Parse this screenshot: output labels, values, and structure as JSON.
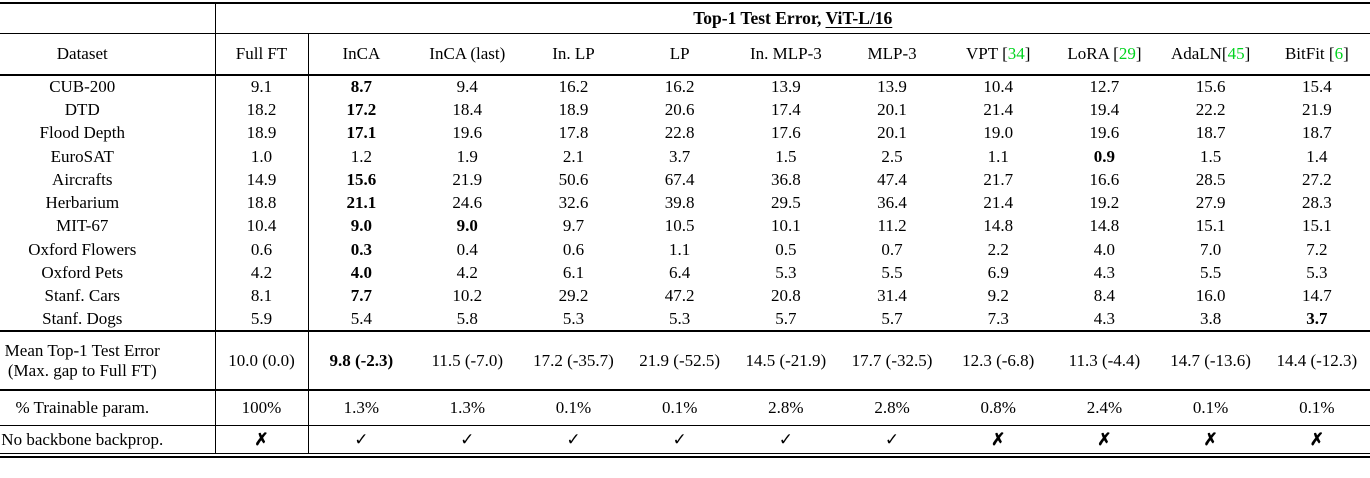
{
  "title": {
    "prefix": "Top-1 Test Error, ",
    "model": "ViT-L/16"
  },
  "colors": {
    "citation_green": "#00d41e",
    "text": "#000000",
    "background": "#ffffff"
  },
  "icons": {
    "check": "✓",
    "cross": "✗"
  },
  "columns": [
    {
      "label": "Dataset"
    },
    {
      "label": "Full FT"
    },
    {
      "label": "InCA"
    },
    {
      "label": "InCA (last)"
    },
    {
      "label": "In. LP"
    },
    {
      "label": "LP"
    },
    {
      "label": "In. MLP-3"
    },
    {
      "label": "MLP-3"
    },
    {
      "label": "VPT",
      "cite": "34",
      "no_space": false
    },
    {
      "label": "LoRA",
      "cite": "29",
      "no_space": false
    },
    {
      "label": "AdaLN",
      "cite": "45",
      "no_space": true
    },
    {
      "label": "BitFit",
      "cite": "6",
      "no_space": false
    }
  ],
  "rows": [
    {
      "dataset": "CUB-200",
      "values": [
        "9.1",
        "8.7",
        "9.4",
        "16.2",
        "16.2",
        "13.9",
        "13.9",
        "10.4",
        "12.7",
        "15.6",
        "15.4"
      ],
      "bold": [
        1
      ]
    },
    {
      "dataset": "DTD",
      "values": [
        "18.2",
        "17.2",
        "18.4",
        "18.9",
        "20.6",
        "17.4",
        "20.1",
        "21.4",
        "19.4",
        "22.2",
        "21.9"
      ],
      "bold": [
        1
      ]
    },
    {
      "dataset": "Flood Depth",
      "values": [
        "18.9",
        "17.1",
        "19.6",
        "17.8",
        "22.8",
        "17.6",
        "20.1",
        "19.0",
        "19.6",
        "18.7",
        "18.7"
      ],
      "bold": [
        1
      ]
    },
    {
      "dataset": "EuroSAT",
      "values": [
        "1.0",
        "1.2",
        "1.9",
        "2.1",
        "3.7",
        "1.5",
        "2.5",
        "1.1",
        "0.9",
        "1.5",
        "1.4"
      ],
      "bold": [
        8
      ]
    },
    {
      "dataset": "Aircrafts",
      "values": [
        "14.9",
        "15.6",
        "21.9",
        "50.6",
        "67.4",
        "36.8",
        "47.4",
        "21.7",
        "16.6",
        "28.5",
        "27.2"
      ],
      "bold": [
        1
      ]
    },
    {
      "dataset": "Herbarium",
      "values": [
        "18.8",
        "21.1",
        "24.6",
        "32.6",
        "39.8",
        "29.5",
        "36.4",
        "21.4",
        "19.2",
        "27.9",
        "28.3"
      ],
      "bold": [
        1
      ]
    },
    {
      "dataset": "MIT-67",
      "values": [
        "10.4",
        "9.0",
        "9.0",
        "9.7",
        "10.5",
        "10.1",
        "11.2",
        "14.8",
        "14.8",
        "15.1",
        "15.1"
      ],
      "bold": [
        1,
        2
      ]
    },
    {
      "dataset": "Oxford Flowers",
      "values": [
        "0.6",
        "0.3",
        "0.4",
        "0.6",
        "1.1",
        "0.5",
        "0.7",
        "2.2",
        "4.0",
        "7.0",
        "7.2"
      ],
      "bold": [
        1
      ]
    },
    {
      "dataset": "Oxford Pets",
      "values": [
        "4.2",
        "4.0",
        "4.2",
        "6.1",
        "6.4",
        "5.3",
        "5.5",
        "6.9",
        "4.3",
        "5.5",
        "5.3"
      ],
      "bold": [
        1
      ]
    },
    {
      "dataset": "Stanf. Cars",
      "values": [
        "8.1",
        "7.7",
        "10.2",
        "29.2",
        "47.2",
        "20.8",
        "31.4",
        "9.2",
        "8.4",
        "16.0",
        "14.7"
      ],
      "bold": [
        1
      ]
    },
    {
      "dataset": "Stanf. Dogs",
      "values": [
        "5.9",
        "5.4",
        "5.8",
        "5.3",
        "5.3",
        "5.7",
        "5.7",
        "7.3",
        "4.3",
        "3.8",
        "3.7"
      ],
      "bold": [
        10
      ]
    }
  ],
  "mean_row": {
    "label_line1": "Mean Top-1 Test Error",
    "label_line2": "(Max. gap to Full FT)",
    "values": [
      "10.0 (0.0)",
      "9.8 (-2.3)",
      "11.5 (-7.0)",
      "17.2 (-35.7)",
      "21.9 (-52.5)",
      "14.5 (-21.9)",
      "17.7 (-32.5)",
      "12.3 (-6.8)",
      "11.3 (-4.4)",
      "14.7 (-13.6)",
      "14.4 (-12.3)"
    ],
    "bold": [
      1
    ]
  },
  "trainable_row": {
    "label": "% Trainable param.",
    "values": [
      "100%",
      "1.3%",
      "1.3%",
      "0.1%",
      "0.1%",
      "2.8%",
      "2.8%",
      "0.8%",
      "2.4%",
      "0.1%",
      "0.1%"
    ]
  },
  "backprop_row": {
    "label": "No backbone backprop.",
    "values": [
      "no",
      "yes",
      "yes",
      "yes",
      "yes",
      "yes",
      "yes",
      "no",
      "no",
      "no",
      "no"
    ]
  }
}
